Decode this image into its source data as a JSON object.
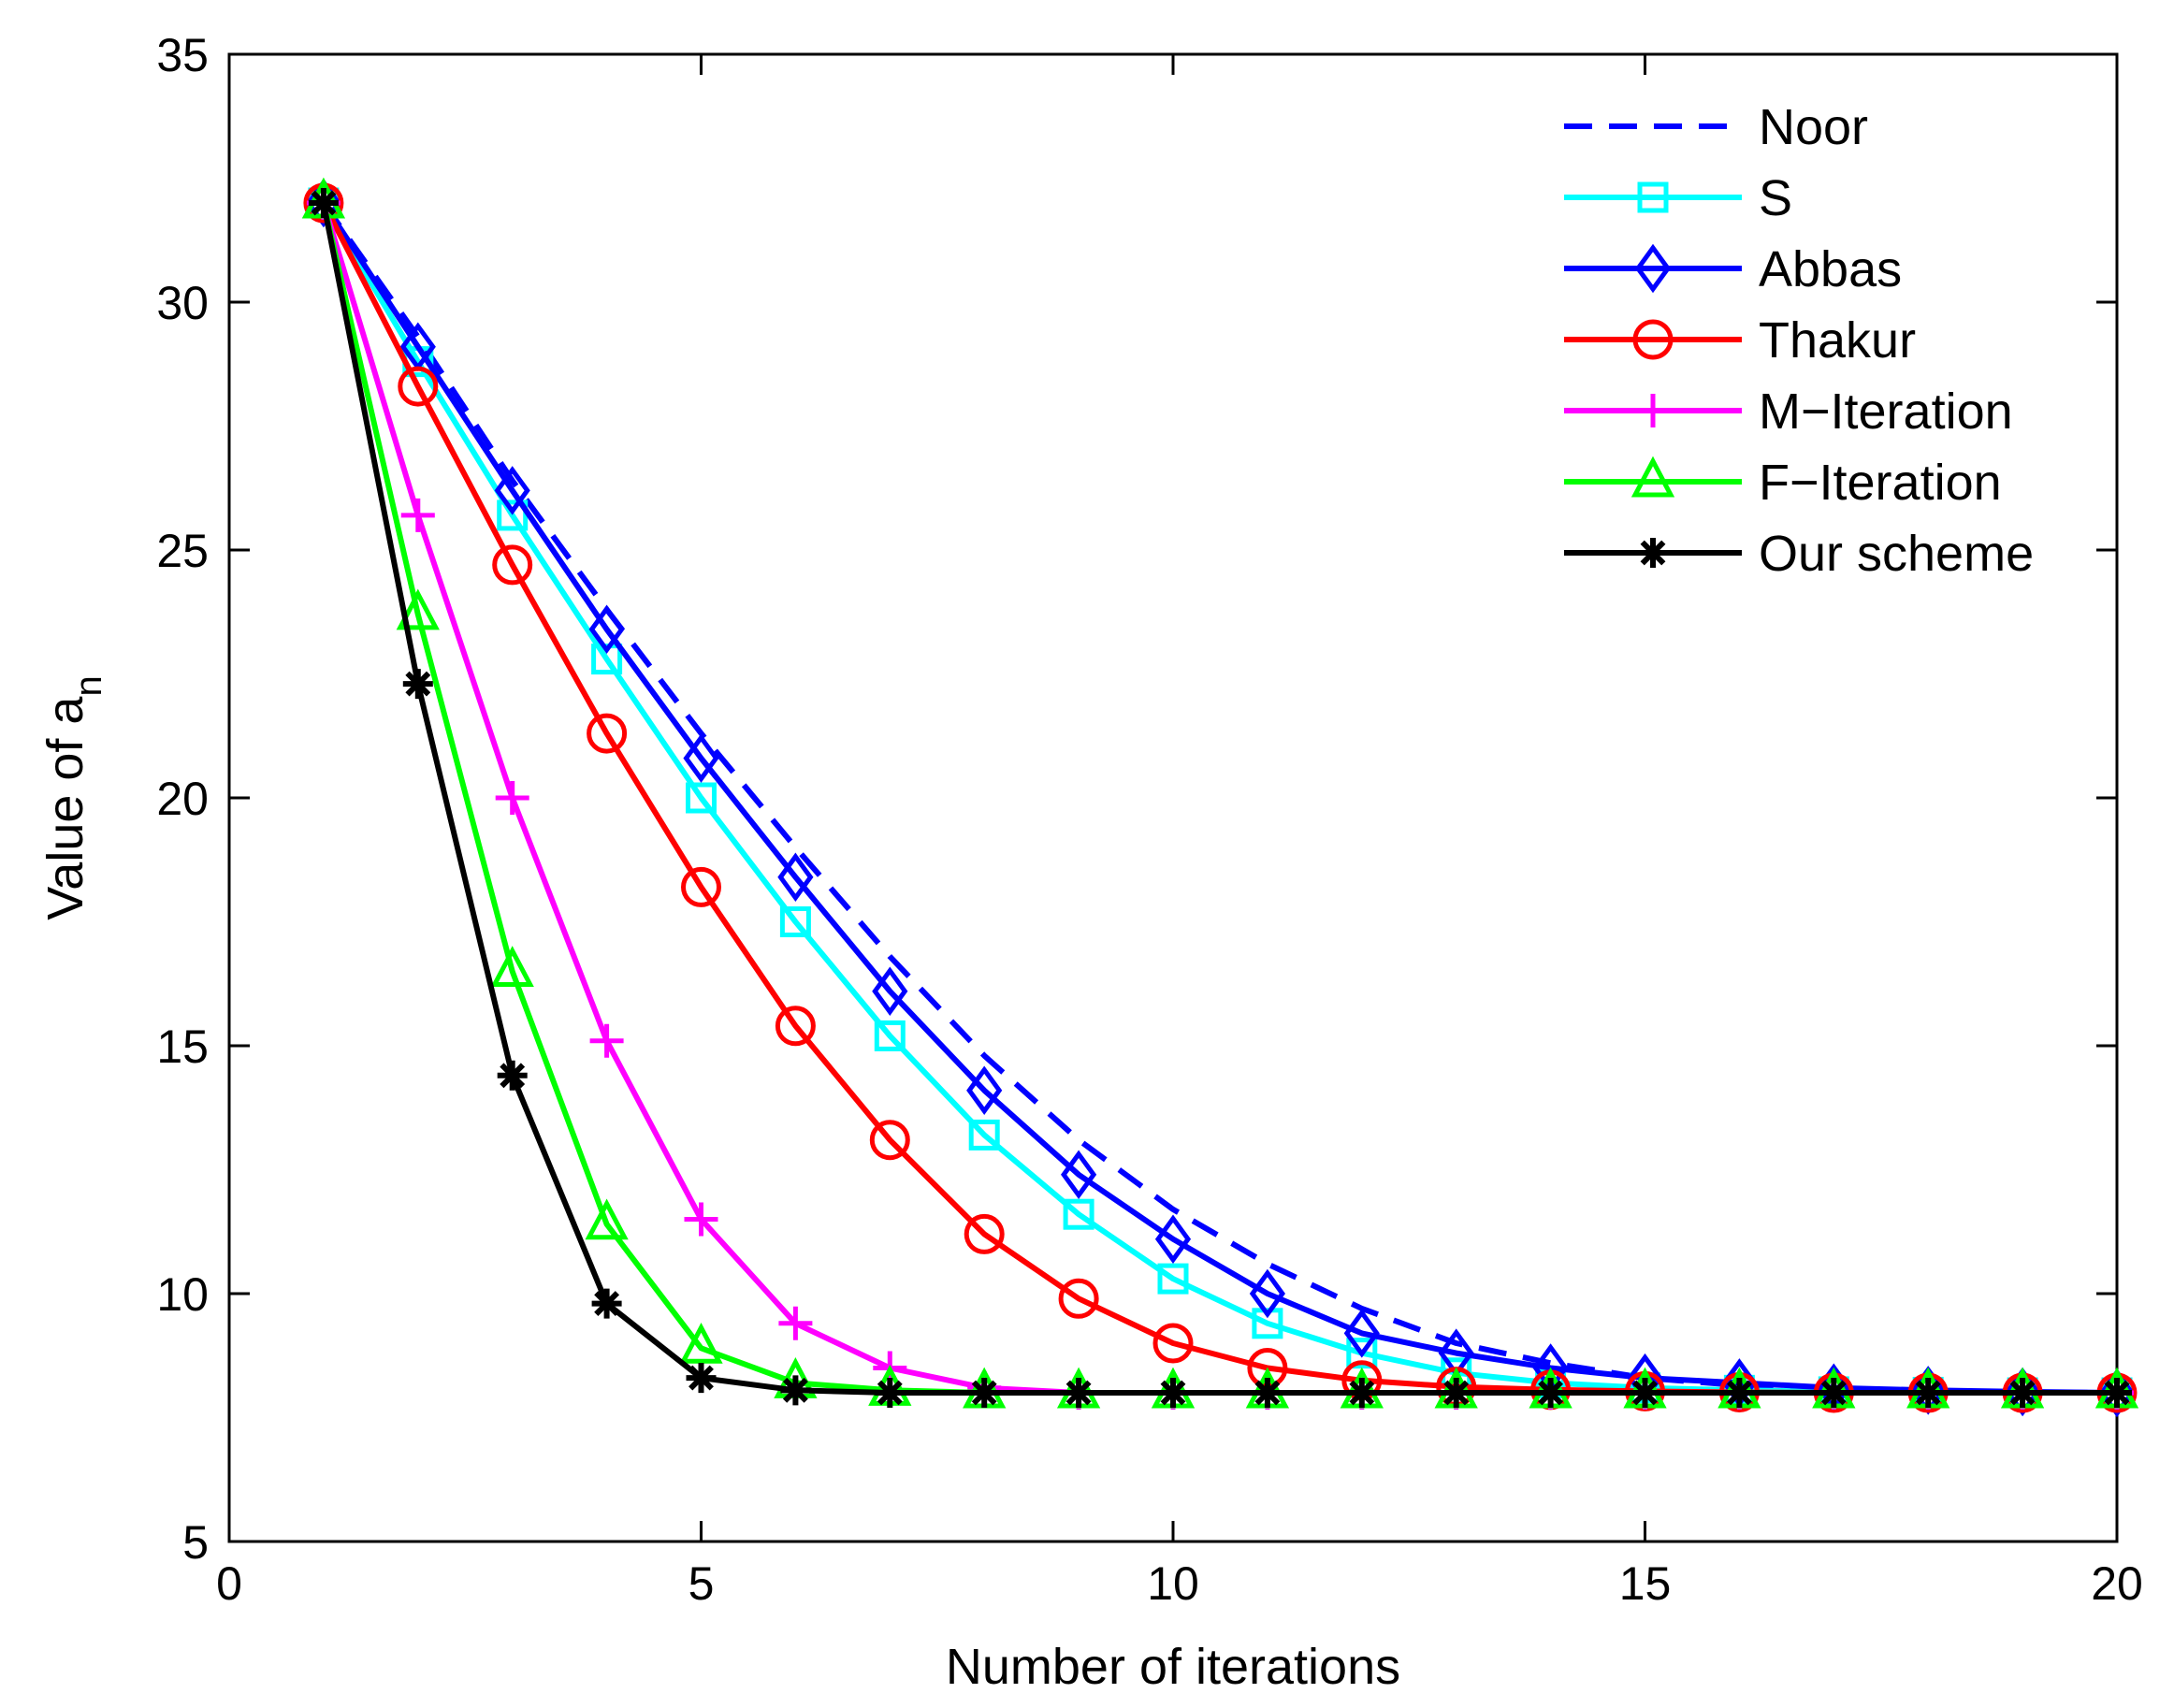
{
  "chart_data": {
    "type": "line",
    "title": "",
    "xlabel": "Number of iterations",
    "ylabel": "Value of a",
    "ylabel_subscript": "n",
    "xlim": [
      0,
      20
    ],
    "ylim": [
      5,
      35
    ],
    "xticks": [
      0,
      5,
      10,
      15,
      20
    ],
    "yticks": [
      5,
      10,
      15,
      20,
      25,
      30,
      35
    ],
    "grid": false,
    "legend_position": "top-right",
    "x": [
      1,
      2,
      3,
      4,
      5,
      6,
      7,
      8,
      9,
      10,
      11,
      12,
      13,
      14,
      15,
      16,
      17,
      18,
      19,
      20
    ],
    "series": [
      {
        "name": "Noor",
        "color": "#0000ff",
        "style": "dashed",
        "marker": "none",
        "values": [
          32,
          29.3,
          26.4,
          23.8,
          21.3,
          19.0,
          16.8,
          14.8,
          13.1,
          11.7,
          10.6,
          9.7,
          9.0,
          8.6,
          8.3,
          8.15,
          8.07,
          8.03,
          8.01,
          8.0
        ]
      },
      {
        "name": "S",
        "color": "#00ffff",
        "style": "solid",
        "marker": "square",
        "values": [
          32,
          28.8,
          25.7,
          22.8,
          20.0,
          17.5,
          15.2,
          13.2,
          11.6,
          10.3,
          9.4,
          8.8,
          8.4,
          8.2,
          8.1,
          8.05,
          8.02,
          8.01,
          8.0,
          8.0
        ]
      },
      {
        "name": "Abbas",
        "color": "#0000ff",
        "style": "solid",
        "marker": "diamond",
        "values": [
          32,
          29.1,
          26.2,
          23.4,
          20.8,
          18.4,
          16.1,
          14.1,
          12.4,
          11.1,
          10.0,
          9.2,
          8.8,
          8.5,
          8.3,
          8.2,
          8.1,
          8.05,
          8.02,
          8.0
        ]
      },
      {
        "name": "Thakur",
        "color": "#ff0000",
        "style": "solid",
        "marker": "circle",
        "values": [
          32,
          28.3,
          24.7,
          21.3,
          18.2,
          15.4,
          13.1,
          11.2,
          9.9,
          9.0,
          8.5,
          8.25,
          8.12,
          8.06,
          8.03,
          8.01,
          8.0,
          8.0,
          8.0,
          8.0
        ]
      },
      {
        "name": "M−Iteration",
        "color": "#ff00ff",
        "style": "solid",
        "marker": "plus",
        "values": [
          32,
          25.7,
          20.0,
          15.1,
          11.5,
          9.4,
          8.5,
          8.1,
          8.0,
          8.0,
          8.0,
          8.0,
          8.0,
          8.0,
          8.0,
          8.0,
          8.0,
          8.0,
          8.0,
          8.0
        ]
      },
      {
        "name": "F−Iteration",
        "color": "#00ff00",
        "style": "solid",
        "marker": "triangle",
        "values": [
          32,
          23.7,
          16.5,
          11.4,
          8.9,
          8.2,
          8.05,
          8.0,
          8.0,
          8.0,
          8.0,
          8.0,
          8.0,
          8.0,
          8.0,
          8.0,
          8.0,
          8.0,
          8.0,
          8.0
        ]
      },
      {
        "name": "Our scheme",
        "color": "#000000",
        "style": "solid",
        "marker": "star",
        "values": [
          32,
          22.3,
          14.4,
          9.8,
          8.3,
          8.05,
          8.0,
          8.0,
          8.0,
          8.0,
          8.0,
          8.0,
          8.0,
          8.0,
          8.0,
          8.0,
          8.0,
          8.0,
          8.0,
          8.0
        ]
      }
    ]
  }
}
